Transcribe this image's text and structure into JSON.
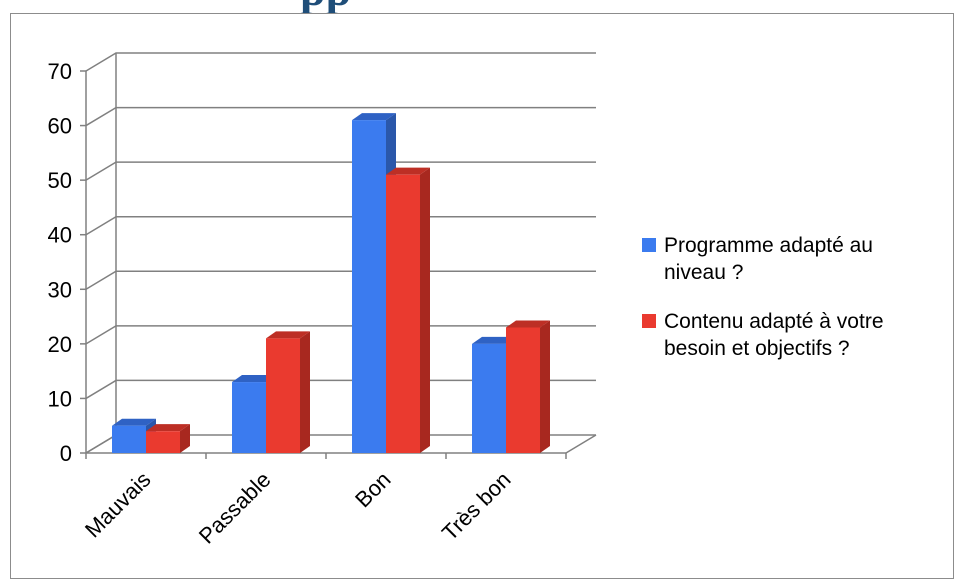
{
  "title_fragment": "pp",
  "colors": {
    "title": "#1f4e79",
    "grid": "#808080",
    "frame": "#8c8c8c"
  },
  "chart_data": {
    "type": "bar",
    "style": "3d-clustered-column",
    "categories": [
      "Mauvais",
      "Passable",
      "Bon",
      "Très bon"
    ],
    "series": [
      {
        "name": "Programme adapté au niveau ?",
        "values": [
          5,
          13,
          61,
          20
        ],
        "color": "#3b7bef",
        "side_color": "#2a57aa",
        "top_color": "#2f62c4"
      },
      {
        "name": "Contenu adapté à votre besoin et objectifs ?",
        "values": [
          4,
          21,
          51,
          23
        ],
        "color": "#ea3a2f",
        "side_color": "#a8281f",
        "top_color": "#bd2f25"
      }
    ],
    "yticks": [
      0,
      10,
      20,
      30,
      40,
      50,
      60,
      70
    ],
    "ylim": [
      0,
      70
    ],
    "grid": true,
    "legend_position": "right",
    "legend_lines": [
      [
        "Programme adapté au",
        "niveau ?"
      ],
      [
        "Contenu adapté à votre",
        "besoin et objectifs ?"
      ]
    ]
  }
}
